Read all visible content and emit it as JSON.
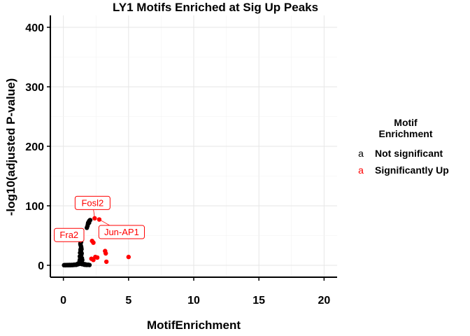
{
  "chart_data": {
    "type": "scatter",
    "title": "LY1 Motifs Enriched at Sig Up Peaks",
    "xlabel": "MotifEnrichment",
    "ylabel": "-log10(adjusted P-value)",
    "xlim": [
      -1,
      21
    ],
    "ylim": [
      -20,
      420
    ],
    "x_ticks": [
      0,
      5,
      10,
      15,
      20
    ],
    "y_ticks": [
      0,
      100,
      200,
      300,
      400
    ],
    "grid": true,
    "legend": {
      "title_lines": [
        "Motif",
        "Enrichment"
      ],
      "placement": "right",
      "key_glyph": "a",
      "entries": [
        {
          "label": "Not significant",
          "color": "#000000"
        },
        {
          "label": "Significantly Up",
          "color": "#ff0000"
        }
      ]
    },
    "series": [
      {
        "name": "Not significant",
        "color": "#000000",
        "points": [
          [
            0.05,
            0.2
          ],
          [
            0.1,
            0.3
          ],
          [
            0.15,
            0.1
          ],
          [
            0.2,
            0.4
          ],
          [
            0.25,
            0.2
          ],
          [
            0.3,
            0.5
          ],
          [
            0.35,
            0.3
          ],
          [
            0.4,
            0.2
          ],
          [
            0.45,
            0.6
          ],
          [
            0.5,
            0.4
          ],
          [
            0.55,
            0.3
          ],
          [
            0.6,
            0.7
          ],
          [
            0.65,
            0.5
          ],
          [
            0.7,
            0.4
          ],
          [
            0.75,
            0.8
          ],
          [
            0.8,
            0.6
          ],
          [
            0.85,
            0.9
          ],
          [
            0.9,
            1.1
          ],
          [
            0.95,
            0.8
          ],
          [
            1.0,
            1.3
          ],
          [
            1.02,
            1.0
          ],
          [
            1.05,
            1.6
          ],
          [
            1.08,
            2.0
          ],
          [
            1.1,
            2.5
          ],
          [
            1.12,
            1.8
          ],
          [
            1.15,
            3.0
          ],
          [
            1.18,
            2.2
          ],
          [
            1.2,
            4.0
          ],
          [
            1.22,
            3.2
          ],
          [
            1.25,
            5.0
          ],
          [
            1.27,
            2.8
          ],
          [
            1.3,
            6.0
          ],
          [
            1.32,
            4.5
          ],
          [
            1.35,
            3.5
          ],
          [
            1.37,
            7.0
          ],
          [
            1.4,
            5.5
          ],
          [
            1.42,
            2.0
          ],
          [
            1.45,
            4.0
          ],
          [
            1.47,
            3.0
          ],
          [
            1.5,
            2.5
          ],
          [
            1.55,
            1.5
          ],
          [
            1.6,
            1.0
          ],
          [
            1.65,
            1.8
          ],
          [
            1.7,
            0.8
          ],
          [
            1.75,
            1.2
          ],
          [
            1.8,
            0.6
          ],
          [
            1.9,
            0.9
          ],
          [
            2.0,
            0.5
          ],
          [
            1.25,
            8
          ],
          [
            1.28,
            10
          ],
          [
            1.3,
            12
          ],
          [
            1.32,
            14
          ],
          [
            1.35,
            16
          ],
          [
            1.38,
            18
          ],
          [
            1.4,
            20
          ],
          [
            1.36,
            22
          ],
          [
            1.33,
            24
          ],
          [
            1.31,
            26
          ],
          [
            1.34,
            28
          ],
          [
            1.37,
            30
          ],
          [
            1.35,
            32
          ],
          [
            1.32,
            34
          ],
          [
            1.3,
            36
          ],
          [
            1.33,
            38
          ],
          [
            1.36,
            39
          ],
          [
            1.28,
            21
          ],
          [
            1.42,
            12
          ],
          [
            1.45,
            9
          ],
          [
            1.26,
            15
          ],
          [
            1.39,
            27
          ],
          [
            1.8,
            63
          ],
          [
            1.85,
            66
          ],
          [
            1.88,
            69
          ],
          [
            1.9,
            71
          ],
          [
            1.92,
            72
          ],
          [
            1.95,
            73
          ],
          [
            1.98,
            74
          ],
          [
            2.0,
            75
          ],
          [
            2.03,
            75.5
          ],
          [
            2.06,
            76
          ],
          [
            1.97,
            71.5
          ]
        ]
      },
      {
        "name": "Significantly Up",
        "color": "#ff0000",
        "points": [
          [
            2.4,
            79
          ],
          [
            2.75,
            77
          ],
          [
            2.2,
            41
          ],
          [
            2.3,
            38
          ],
          [
            3.2,
            24
          ],
          [
            3.25,
            20
          ],
          [
            2.45,
            14
          ],
          [
            2.6,
            13
          ],
          [
            2.15,
            11
          ],
          [
            2.3,
            9
          ],
          [
            3.3,
            6
          ],
          [
            5.0,
            14
          ]
        ]
      }
    ],
    "annotations": [
      {
        "text": "Fosl2",
        "x": 2.4,
        "y": 79,
        "color": "#ff0000"
      },
      {
        "text": "Jun-AP1",
        "x": 2.75,
        "y": 77,
        "color": "#ff0000"
      },
      {
        "text": "Fra2",
        "x": 1.35,
        "y": 38,
        "color": "#ff0000"
      }
    ]
  }
}
